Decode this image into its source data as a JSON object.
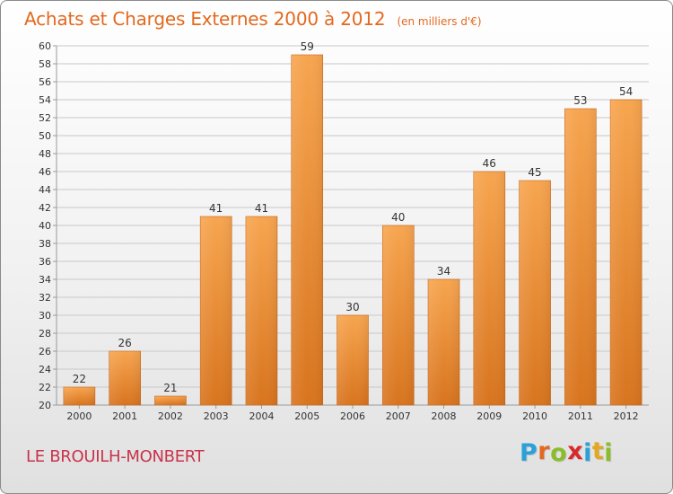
{
  "title": "Achats et Charges Externes 2000 à 2012",
  "unit": "(en milliers d'€)",
  "commune": "LE BROUILH-MONBERT",
  "brand": {
    "text": "Proxiti",
    "letters": [
      "P",
      "r",
      "o",
      "x",
      "i",
      "t",
      "i"
    ],
    "letter_colors": [
      "#2aa1d8",
      "#e2691f",
      "#8bbd2a",
      "#d9292d",
      "#2aa1d8",
      "#e2a81f",
      "#8bbd2a"
    ]
  },
  "colors": {
    "title": "#e2691f",
    "commune": "#c9334a",
    "bar_top": "#f7a54f",
    "bar_bottom": "#d8741e",
    "bar_edge": "#c8651b",
    "grid": "#c8c8c8",
    "axis": "#9a9a9a",
    "label": "#333333"
  },
  "chart_data": {
    "type": "bar",
    "title": "Achats et Charges Externes 2000 à 2012",
    "subtitle": "(en milliers d'€)",
    "xlabel": "",
    "ylabel": "",
    "categories": [
      "2000",
      "2001",
      "2002",
      "2003",
      "2004",
      "2005",
      "2006",
      "2007",
      "2008",
      "2009",
      "2010",
      "2011",
      "2012"
    ],
    "values": [
      22,
      26,
      21,
      41,
      41,
      59,
      30,
      40,
      34,
      46,
      45,
      53,
      54
    ],
    "ylim": [
      20,
      60
    ],
    "yticks": [
      20,
      22,
      24,
      26,
      28,
      30,
      32,
      34,
      36,
      38,
      40,
      42,
      44,
      46,
      48,
      50,
      52,
      54,
      56,
      58,
      60
    ],
    "grid": true,
    "legend": "none"
  }
}
